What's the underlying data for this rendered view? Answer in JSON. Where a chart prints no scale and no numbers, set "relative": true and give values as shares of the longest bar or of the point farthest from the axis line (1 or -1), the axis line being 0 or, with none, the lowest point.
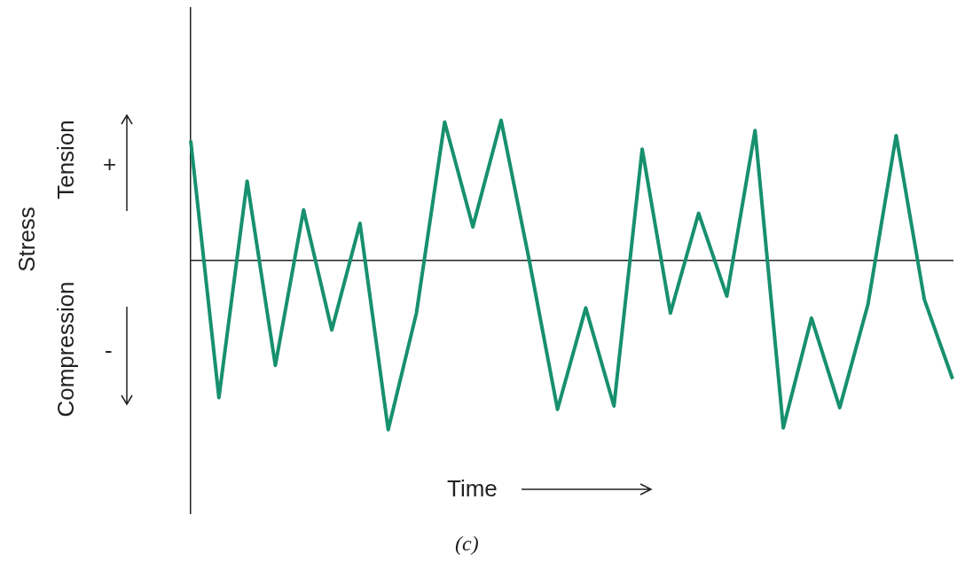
{
  "chart_data": {
    "type": "line",
    "relative": true,
    "xlabel": "Time",
    "annotations": [
      "Stress",
      "Tension",
      "+",
      "Compression",
      "-",
      "(c)"
    ],
    "categories": [
      null,
      null,
      null,
      null,
      null,
      null,
      null,
      null,
      null,
      null,
      null,
      null,
      null,
      null,
      null,
      null,
      null,
      null,
      null,
      null,
      null,
      null,
      null,
      null,
      null,
      null,
      null,
      null
    ],
    "series": [
      {
        "color": "#17906e",
        "values": [
          0.71,
          -0.81,
          0.47,
          -0.62,
          0.3,
          -0.41,
          0.22,
          -1,
          -0.31,
          0.82,
          0.2,
          0.83,
          0,
          -0.88,
          -0.28,
          -0.86,
          0.66,
          -0.31,
          0.28,
          -0.21,
          0.77,
          -0.99,
          -0.34,
          -0.87,
          -0.26,
          0.74,
          -0.23,
          -0.7
        ]
      }
    ],
    "grid": false,
    "legend": false,
    "marker": "none",
    "line_style": "solid"
  }
}
